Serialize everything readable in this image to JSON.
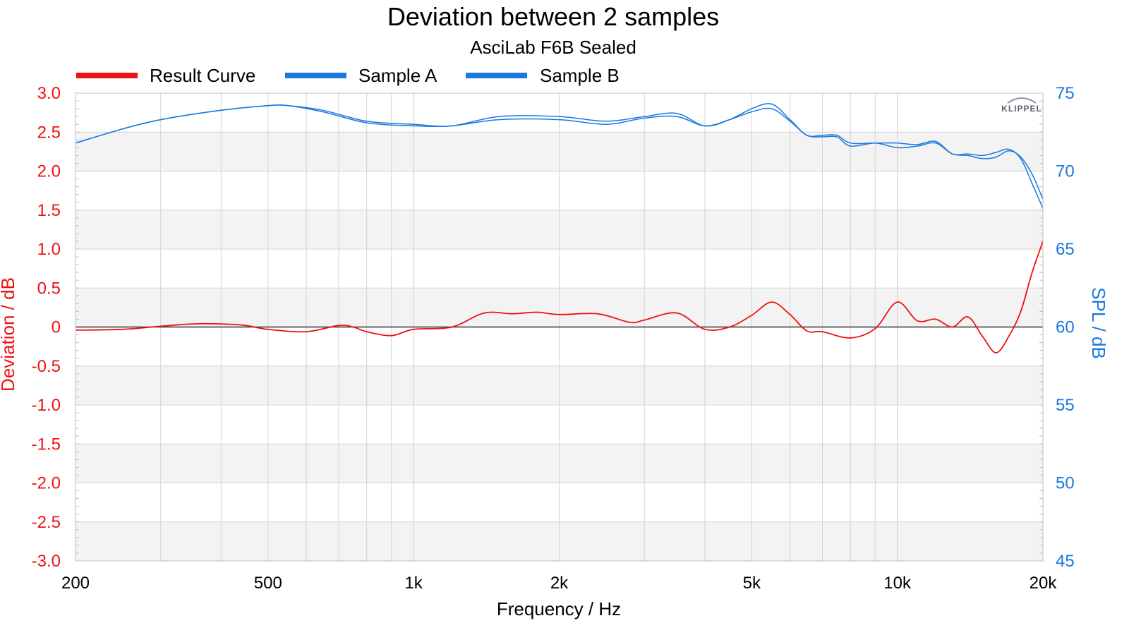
{
  "chart_data": {
    "type": "line",
    "title": "Deviation between 2 samples",
    "subtitle": "AsciLab F6B Sealed",
    "xlabel": "Frequency / Hz",
    "ylabel_left": "Deviation / dB",
    "ylabel_right": "SPL / dB",
    "x_scale": "log",
    "xlim": [
      200,
      20000
    ],
    "ylim_left": [
      -3.0,
      3.0
    ],
    "ylim_right": [
      45,
      75
    ],
    "x_ticks": [
      200,
      500,
      1000,
      2000,
      5000,
      10000,
      20000
    ],
    "x_tick_labels": [
      "200",
      "500",
      "1k",
      "2k",
      "5k",
      "10k",
      "20k"
    ],
    "y_left_ticks": [
      3.0,
      2.5,
      2.0,
      1.5,
      1.0,
      0.5,
      0,
      -0.5,
      -1.0,
      -1.5,
      -2.0,
      -2.5,
      -3.0
    ],
    "y_left_tick_labels": [
      "3.0",
      "2.5",
      "2.0",
      "1.5",
      "1.0",
      "0.5",
      "0",
      "-0.5",
      "-1.0",
      "-1.5",
      "-2.0",
      "-2.5",
      "-3.0"
    ],
    "y_right_ticks": [
      75,
      70,
      65,
      60,
      55,
      50,
      45
    ],
    "y_right_tick_labels": [
      "75",
      "70",
      "65",
      "60",
      "55",
      "50",
      "45"
    ],
    "grid": true,
    "legend_position": "top",
    "series": [
      {
        "name": "Result Curve",
        "axis": "left",
        "color": "#ee1111",
        "x": [
          200,
          250,
          300,
          350,
          400,
          450,
          500,
          600,
          700,
          750,
          800,
          900,
          1000,
          1200,
          1400,
          1600,
          1800,
          2000,
          2400,
          2800,
          3000,
          3500,
          4000,
          4500,
          5000,
          5500,
          6000,
          6500,
          7000,
          8000,
          9000,
          10000,
          11000,
          12000,
          13000,
          14000,
          15000,
          16000,
          17000,
          18000,
          19000,
          20000
        ],
        "y": [
          -0.04,
          -0.03,
          0.01,
          0.04,
          0.04,
          0.02,
          -0.03,
          -0.06,
          0.02,
          0.0,
          -0.06,
          -0.11,
          -0.03,
          0.0,
          0.18,
          0.17,
          0.19,
          0.16,
          0.17,
          0.06,
          0.09,
          0.18,
          -0.03,
          0.0,
          0.15,
          0.32,
          0.16,
          -0.05,
          -0.06,
          -0.14,
          -0.02,
          0.32,
          0.08,
          0.1,
          0.0,
          0.13,
          -0.12,
          -0.33,
          -0.12,
          0.2,
          0.7,
          1.1
        ]
      },
      {
        "name": "Sample A",
        "axis": "right",
        "color": "#1a78e0",
        "x": [
          200,
          250,
          300,
          400,
          500,
          550,
          650,
          800,
          1000,
          1200,
          1500,
          2000,
          2500,
          3000,
          3500,
          4000,
          4500,
          5000,
          5500,
          6000,
          6500,
          7000,
          7500,
          8000,
          9000,
          10000,
          11000,
          12000,
          13000,
          14000,
          15000,
          16000,
          17000,
          18000,
          19000,
          20000
        ],
        "y": [
          71.8,
          72.7,
          73.3,
          73.9,
          74.2,
          74.2,
          73.8,
          73.1,
          72.9,
          72.9,
          73.3,
          73.3,
          73.0,
          73.4,
          73.5,
          72.9,
          73.3,
          73.8,
          74.0,
          73.2,
          72.3,
          72.2,
          72.2,
          71.6,
          71.8,
          71.5,
          71.6,
          71.8,
          71.1,
          71.0,
          70.8,
          70.9,
          71.3,
          70.9,
          69.8,
          68.2
        ]
      },
      {
        "name": "Sample B",
        "axis": "right",
        "color": "#1a78e0",
        "x": [
          200,
          250,
          300,
          400,
          500,
          550,
          650,
          800,
          1000,
          1200,
          1500,
          2000,
          2500,
          3000,
          3500,
          4000,
          4500,
          5000,
          5500,
          6000,
          6500,
          7000,
          7500,
          8000,
          9000,
          10000,
          11000,
          12000,
          13000,
          14000,
          15000,
          16000,
          17000,
          18000,
          19000,
          20000
        ],
        "y": [
          71.8,
          72.7,
          73.3,
          73.9,
          74.2,
          74.2,
          73.9,
          73.2,
          73.0,
          72.9,
          73.5,
          73.5,
          73.2,
          73.5,
          73.7,
          72.9,
          73.3,
          74.0,
          74.3,
          73.3,
          72.3,
          72.3,
          72.3,
          71.8,
          71.8,
          71.8,
          71.7,
          71.9,
          71.1,
          71.1,
          71.0,
          71.2,
          71.4,
          70.8,
          69.2,
          67.6
        ]
      }
    ]
  },
  "logo": {
    "text": "KLIPPEL"
  }
}
